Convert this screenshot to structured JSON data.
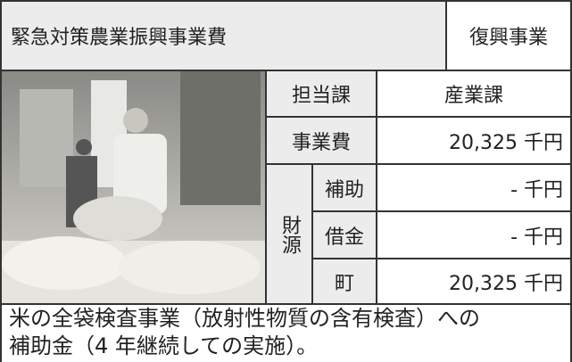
{
  "header": {
    "title": "緊急対策農業振興事業費",
    "category": "復興事業"
  },
  "table": {
    "department_label": "担当課",
    "department": "産業課",
    "cost_label": "事業費",
    "cost": "20,325 千円",
    "funding_label": "財源",
    "funding": [
      {
        "label": "補助",
        "value": "- 千円"
      },
      {
        "label": "借金",
        "value": "- 千円"
      },
      {
        "label": "町",
        "value": "20,325 千円"
      }
    ]
  },
  "description": [
    "米の全袋検査事業（放射性物質の含有検査）への",
    "補助金（4 年継続しての実施）。"
  ]
}
